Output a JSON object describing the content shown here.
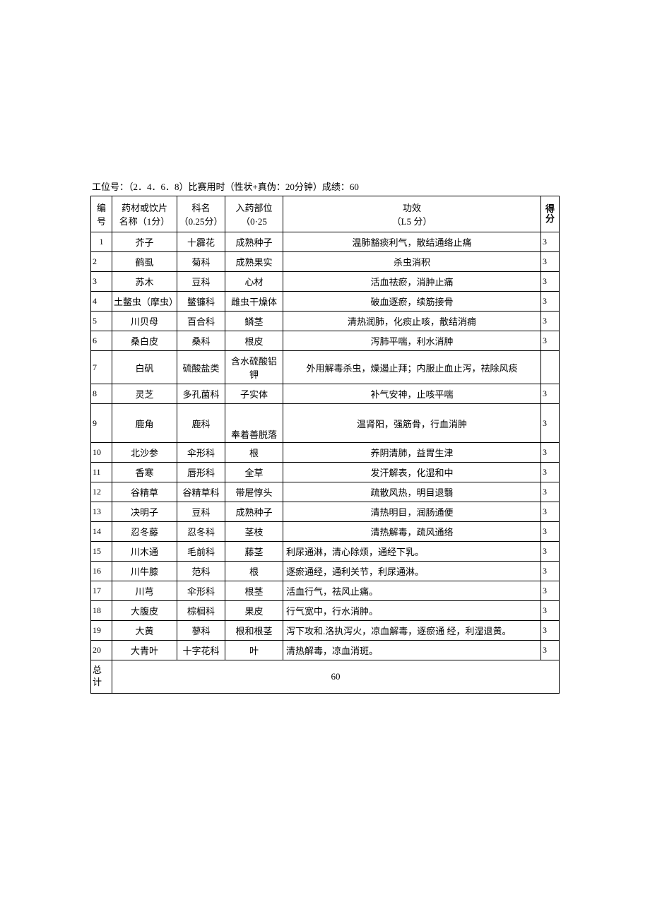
{
  "header": "工位号：（2．4．6．8）比赛用时（性状+真伪：20分钟）成绩：60",
  "columns": {
    "num": {
      "l1": "编",
      "l2": "号"
    },
    "name": {
      "l1": "药材或饮片",
      "l2": "名称（1分）"
    },
    "family": {
      "l1": "科名",
      "l2": "（0.25分）"
    },
    "part": {
      "l1": "入药部位",
      "l2": "（0·25"
    },
    "effect": {
      "l1": "功效",
      "l2": "（L5 分）"
    },
    "score": "得分"
  },
  "rows": [
    {
      "n": "1",
      "name": "芥子",
      "family": "十霹花",
      "part": "成熟种子",
      "effect": "温肺豁痰利气，散结通络止痛",
      "score": "3",
      "effAlign": "center",
      "numAlign": "center"
    },
    {
      "n": "2",
      "name": "鹤虱",
      "family": "菊科",
      "part": "成熟果实",
      "effect": "杀虫消积",
      "score": "3",
      "effAlign": "center"
    },
    {
      "n": "3",
      "name": "苏木",
      "family": "豆科",
      "part": "心材",
      "effect": "活血祛瘀，消肿止痛",
      "score": "3",
      "effAlign": "center"
    },
    {
      "n": "4",
      "name": "土鳖虫（摩虫）",
      "family": "鳖镰科",
      "part": "雌虫干燥体",
      "effect": "破血逐瘀，续筋接骨",
      "score": "3",
      "effAlign": "center"
    },
    {
      "n": "5",
      "name": "川贝母",
      "family": "百合科",
      "part": "鳞茎",
      "effect": "清热润肺，化痰止咳，散结消痈",
      "score": "3",
      "effAlign": "center"
    },
    {
      "n": "6",
      "name": "桑白皮",
      "family": "桑科",
      "part": "根皮",
      "effect": "泻肺平喘，利水消肿",
      "score": "3",
      "effAlign": "center"
    },
    {
      "n": "7",
      "name": "白矾",
      "family": "硫酸盐类",
      "part": "含水硫酸铝钾",
      "effect": "外用解毒杀虫，燥遏止拜；内服止血止泻，祛除风痰",
      "score": "",
      "effAlign": "center"
    },
    {
      "n": "8",
      "name": "灵芝",
      "family": "多孔菌科",
      "part": "子实体",
      "effect": "补气安神，止咳平喘",
      "score": "3",
      "effAlign": "center"
    },
    {
      "n": "9",
      "name": "鹿角",
      "family": "鹿科",
      "part": "奉着善脱落",
      "effect": "温肾阳，强筋骨，行血消肿",
      "score": "3",
      "effAlign": "center",
      "tall": true
    },
    {
      "n": "10",
      "name": "北沙参",
      "family": "伞形科",
      "part": "根",
      "effect": "养阴清肺，益胃生津",
      "score": "3",
      "effAlign": "center"
    },
    {
      "n": "11",
      "name": "香寒",
      "family": "唇形科",
      "part": "全草",
      "effect": "发汗解表，化湿和中",
      "score": "3",
      "effAlign": "center"
    },
    {
      "n": "12",
      "name": "谷精草",
      "family": "谷精草科",
      "part": "带屉惇头",
      "effect": "疏散风热，明目退翳",
      "score": "3",
      "effAlign": "center"
    },
    {
      "n": "13",
      "name": "决明子",
      "family": "豆科",
      "part": "成熟种子",
      "effect": "清热明目，润肠通便",
      "score": "3",
      "effAlign": "center"
    },
    {
      "n": "14",
      "name": "忍冬藤",
      "family": "忍冬科",
      "part": "茎枝",
      "effect": "清热解毒，疏风通络",
      "score": "3",
      "effAlign": "center"
    },
    {
      "n": "15",
      "name": "川木通",
      "family": "毛前科",
      "part": "藤茎",
      "effect": "利尿通淋，清心除烦，通经下乳。",
      "score": "3",
      "effAlign": "left"
    },
    {
      "n": "16",
      "name": "川牛膝",
      "family": "范科",
      "part": "根",
      "effect": "逐瘀通经，通利关节，利尿通淋。",
      "score": "3",
      "effAlign": "left"
    },
    {
      "n": "17",
      "name": "川芎",
      "family": "伞形科",
      "part": "根茎",
      "effect": "活血行气，祛风止痛。",
      "score": "3",
      "effAlign": "left"
    },
    {
      "n": "18",
      "name": "大腹皮",
      "family": "棕榈科",
      "part": "果皮",
      "effect": "行气宽中，行水消肿。",
      "score": "3",
      "effAlign": "left"
    },
    {
      "n": "19",
      "name": "大黄",
      "family": "蓼科",
      "part": "根和根茎",
      "effect": "泻下攻和.洛执泻火，凉血解毒，逐瘀通 经，利湿退黄。",
      "score": "3",
      "effAlign": "left"
    },
    {
      "n": "20",
      "name": "大青叶",
      "family": "十字花科",
      "part": "叶",
      "effect": "清热解毒，凉血消斑。",
      "score": "3",
      "effAlign": "left"
    }
  ],
  "total": {
    "label1": "总",
    "label2": "计",
    "value": "60"
  }
}
